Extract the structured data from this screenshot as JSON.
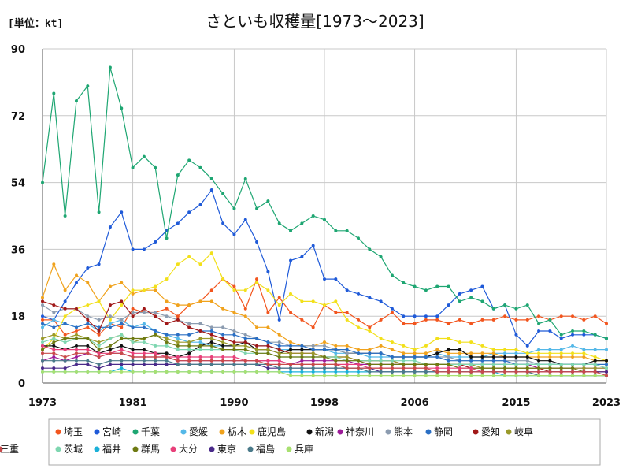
{
  "unit_label": "[単位：kt]",
  "chart_data": {
    "type": "line",
    "title": "さといも収穫量[1973～2023]",
    "xlabel": "",
    "ylabel": "",
    "xlim": [
      1973,
      2023
    ],
    "ylim": [
      0,
      90
    ],
    "x_ticks": [
      1973,
      1981,
      1990,
      1998,
      2006,
      2015,
      2023
    ],
    "y_ticks": [
      0,
      18,
      36,
      54,
      72,
      90
    ],
    "grid": "horizontal",
    "legend_position": "bottom",
    "x": [
      1973,
      1974,
      1975,
      1976,
      1977,
      1978,
      1979,
      1980,
      1981,
      1982,
      1983,
      1984,
      1985,
      1986,
      1987,
      1988,
      1989,
      1990,
      1991,
      1992,
      1993,
      1994,
      1995,
      1996,
      1997,
      1998,
      1999,
      2000,
      2001,
      2002,
      2003,
      2004,
      2005,
      2006,
      2007,
      2008,
      2009,
      2010,
      2011,
      2012,
      2013,
      2014,
      2015,
      2016,
      2017,
      2018,
      2019,
      2020,
      2021,
      2022,
      2023
    ],
    "series": [
      {
        "name": "埼玉",
        "color": "#f2551e",
        "values": [
          17,
          17,
          13,
          14,
          15,
          13,
          16,
          15,
          20,
          19,
          19,
          20,
          18,
          21,
          22,
          25,
          28,
          26,
          20,
          28,
          19,
          23,
          19,
          17,
          15,
          21,
          19,
          19,
          17,
          15,
          17,
          19,
          16,
          16,
          17,
          17,
          16,
          17,
          16,
          17,
          17,
          18,
          17,
          17,
          18,
          17,
          18,
          18,
          17,
          18,
          16
        ]
      },
      {
        "name": "宮崎",
        "color": "#1f5ad8",
        "values": [
          18,
          17,
          22,
          27,
          31,
          32,
          42,
          46,
          36,
          36,
          38,
          41,
          43,
          46,
          48,
          52,
          43,
          40,
          44,
          38,
          30,
          17,
          33,
          34,
          37,
          28,
          28,
          25,
          24,
          23,
          22,
          20,
          18,
          18,
          18,
          18,
          21,
          24,
          25,
          26,
          20,
          21,
          13,
          10,
          14,
          14,
          12,
          13,
          13,
          13,
          12
        ]
      },
      {
        "name": "千葉",
        "color": "#1ea672",
        "values": [
          54,
          78,
          45,
          76,
          80,
          46,
          85,
          74,
          58,
          61,
          58,
          39,
          56,
          60,
          58,
          55,
          51,
          47,
          55,
          47,
          49,
          43,
          41,
          43,
          45,
          44,
          41,
          41,
          39,
          36,
          34,
          29,
          27,
          26,
          25,
          26,
          26,
          22,
          23,
          22,
          20,
          21,
          20,
          21,
          16,
          17,
          13,
          14,
          14,
          13,
          12
        ]
      },
      {
        "name": "愛媛",
        "color": "#54b8e8",
        "values": [
          15,
          17,
          16,
          15,
          16,
          14,
          16,
          17,
          15,
          16,
          14,
          13,
          12,
          11,
          11,
          10,
          10,
          10,
          11,
          10,
          10,
          9,
          9,
          9,
          9,
          9,
          8,
          8,
          8,
          7,
          7,
          7,
          7,
          7,
          7,
          8,
          7,
          7,
          7,
          7,
          8,
          8,
          8,
          8,
          9,
          9,
          9,
          10,
          9,
          9,
          9
        ]
      },
      {
        "name": "栃木",
        "color": "#f0a21c",
        "values": [
          23,
          32,
          25,
          29,
          27,
          22,
          26,
          27,
          24,
          25,
          25,
          22,
          21,
          21,
          22,
          22,
          20,
          19,
          18,
          15,
          15,
          13,
          11,
          10,
          10,
          11,
          10,
          10,
          9,
          9,
          10,
          9,
          8,
          8,
          8,
          9,
          8,
          8,
          8,
          8,
          8,
          7,
          7,
          7,
          7,
          7,
          7,
          7,
          7,
          6,
          6
        ]
      },
      {
        "name": "鹿児島",
        "color": "#f2e01a",
        "values": [
          9,
          12,
          18,
          20,
          21,
          22,
          17,
          21,
          25,
          25,
          26,
          28,
          32,
          34,
          32,
          35,
          28,
          25,
          25,
          27,
          25,
          21,
          24,
          22,
          22,
          21,
          22,
          17,
          15,
          14,
          12,
          11,
          10,
          9,
          10,
          12,
          12,
          11,
          11,
          10,
          9,
          9,
          9,
          8,
          8,
          8,
          8,
          8,
          8,
          7,
          6
        ]
      },
      {
        "name": "新潟",
        "color": "#111111",
        "values": [
          10,
          10,
          9,
          10,
          10,
          8,
          9,
          10,
          9,
          9,
          8,
          8,
          7,
          8,
          10,
          11,
          10,
          10,
          11,
          9,
          9,
          8,
          9,
          9,
          9,
          9,
          9,
          8,
          8,
          8,
          8,
          7,
          7,
          7,
          7,
          8,
          9,
          9,
          7,
          7,
          7,
          7,
          7,
          7,
          6,
          6,
          5,
          5,
          5,
          6,
          6
        ]
      },
      {
        "name": "神奈川",
        "color": "#9c1a98",
        "values": [
          6,
          7,
          6,
          7,
          8,
          7,
          8,
          8,
          7,
          7,
          7,
          7,
          6,
          6,
          6,
          6,
          6,
          6,
          6,
          6,
          6,
          6,
          5,
          6,
          6,
          6,
          6,
          6,
          5,
          5,
          5,
          5,
          5,
          5,
          5,
          5,
          5,
          5,
          5,
          5,
          5,
          5,
          5,
          5,
          4,
          4,
          4,
          4,
          4,
          4,
          4
        ]
      },
      {
        "name": "熊本",
        "color": "#8c9cb0",
        "values": [
          21,
          19,
          20,
          20,
          18,
          17,
          18,
          17,
          19,
          19,
          19,
          18,
          17,
          16,
          16,
          15,
          15,
          14,
          13,
          12,
          11,
          11,
          10,
          10,
          10,
          10,
          9,
          8,
          8,
          8,
          8,
          7,
          7,
          7,
          7,
          7,
          7,
          6,
          6,
          6,
          6,
          6,
          6,
          6,
          5,
          5,
          5,
          5,
          5,
          5,
          4
        ]
      },
      {
        "name": "静岡",
        "color": "#2a6fc4",
        "values": [
          16,
          15,
          16,
          15,
          16,
          15,
          15,
          16,
          15,
          15,
          14,
          13,
          13,
          13,
          14,
          14,
          13,
          13,
          12,
          12,
          11,
          10,
          10,
          10,
          9,
          9,
          9,
          9,
          8,
          8,
          8,
          7,
          7,
          7,
          7,
          7,
          6,
          6,
          6,
          6,
          6,
          6,
          5,
          5,
          5,
          5,
          5,
          5,
          5,
          5,
          5
        ]
      },
      {
        "name": "愛知",
        "color": "#a01818",
        "values": [
          22,
          21,
          20,
          20,
          17,
          14,
          21,
          22,
          18,
          20,
          18,
          16,
          17,
          15,
          14,
          13,
          12,
          11,
          11,
          10,
          10,
          9,
          8,
          8,
          8,
          7,
          7,
          7,
          6,
          6,
          6,
          6,
          5,
          5,
          5,
          5,
          5,
          5,
          4,
          4,
          4,
          4,
          4,
          4,
          4,
          3,
          3,
          3,
          3,
          3,
          3
        ]
      },
      {
        "name": "岐阜",
        "color": "#9a9a2a",
        "values": [
          12,
          13,
          12,
          13,
          12,
          11,
          12,
          13,
          11,
          12,
          13,
          12,
          11,
          11,
          12,
          12,
          11,
          10,
          10,
          9,
          9,
          8,
          8,
          8,
          8,
          7,
          7,
          7,
          6,
          6,
          6,
          6,
          5,
          5,
          5,
          5,
          5,
          5,
          5,
          4,
          4,
          4,
          4,
          4,
          4,
          4,
          4,
          4,
          4,
          4,
          4
        ]
      },
      {
        "name": "茨城",
        "color": "#7ed6b0",
        "values": [
          11,
          12,
          11,
          12,
          12,
          10,
          12,
          13,
          11,
          11,
          10,
          10,
          9,
          9,
          9,
          9,
          9,
          9,
          8,
          8,
          8,
          7,
          7,
          7,
          7,
          7,
          7,
          6,
          6,
          6,
          6,
          6,
          6,
          6,
          5,
          5,
          5,
          5,
          5,
          5,
          5,
          5,
          5,
          5,
          5,
          5,
          5,
          5,
          5,
          5,
          4
        ]
      },
      {
        "name": "福井",
        "color": "#1ab0d8",
        "values": [
          3,
          3,
          3,
          3,
          3,
          3,
          3,
          4,
          3,
          3,
          3,
          3,
          3,
          3,
          3,
          3,
          3,
          3,
          3,
          3,
          3,
          3,
          3,
          3,
          3,
          3,
          3,
          3,
          3,
          3,
          3,
          3,
          3,
          3,
          3,
          3,
          3,
          3,
          3,
          3,
          3,
          2,
          2,
          2,
          2,
          2,
          2,
          2,
          2,
          2,
          2
        ]
      },
      {
        "name": "群馬",
        "color": "#6e7a12",
        "values": [
          9,
          11,
          12,
          12,
          12,
          9,
          10,
          12,
          12,
          12,
          13,
          11,
          10,
          10,
          10,
          10,
          9,
          9,
          9,
          8,
          8,
          7,
          7,
          7,
          7,
          7,
          6,
          6,
          6,
          5,
          5,
          5,
          5,
          5,
          5,
          5,
          5,
          4,
          4,
          4,
          4,
          4,
          4,
          4,
          4,
          4,
          4,
          4,
          3,
          3,
          3
        ]
      },
      {
        "name": "大分",
        "color": "#e8407a",
        "values": [
          10,
          9,
          9,
          9,
          9,
          8,
          8,
          9,
          8,
          8,
          8,
          7,
          7,
          7,
          7,
          7,
          7,
          7,
          6,
          6,
          6,
          6,
          5,
          5,
          5,
          5,
          5,
          5,
          5,
          4,
          4,
          4,
          4,
          4,
          4,
          4,
          4,
          4,
          4,
          3,
          3,
          3,
          3,
          3,
          3,
          3,
          3,
          3,
          3,
          3,
          3
        ]
      },
      {
        "name": "東京",
        "color": "#4a2a8a",
        "values": [
          4,
          4,
          4,
          5,
          5,
          4,
          5,
          5,
          5,
          5,
          5,
          5,
          5,
          5,
          5,
          5,
          5,
          5,
          5,
          5,
          4,
          4,
          4,
          4,
          4,
          4,
          4,
          4,
          4,
          4,
          3,
          3,
          3,
          3,
          3,
          3,
          3,
          3,
          3,
          3,
          3,
          3,
          3,
          3,
          3,
          3,
          3,
          3,
          3,
          3,
          3
        ]
      },
      {
        "name": "福島",
        "color": "#4a7a8a",
        "values": [
          6,
          6,
          6,
          6,
          6,
          5,
          6,
          6,
          6,
          6,
          6,
          6,
          5,
          5,
          5,
          5,
          5,
          5,
          5,
          5,
          5,
          4,
          4,
          4,
          4,
          4,
          4,
          4,
          4,
          3,
          3,
          3,
          3,
          3,
          3,
          3,
          3,
          3,
          3,
          3,
          3,
          3,
          3,
          3,
          2,
          2,
          2,
          2,
          2,
          2,
          2
        ]
      },
      {
        "name": "兵庫",
        "color": "#a8e070",
        "values": [
          3,
          3,
          3,
          3,
          3,
          3,
          3,
          3,
          3,
          3,
          3,
          3,
          3,
          3,
          3,
          3,
          3,
          3,
          3,
          3,
          3,
          3,
          2,
          2,
          2,
          2,
          2,
          2,
          2,
          2,
          2,
          2,
          2,
          2,
          2,
          2,
          2,
          2,
          2,
          2,
          2,
          2,
          2,
          2,
          2,
          2,
          2,
          2,
          2,
          2,
          2
        ]
      },
      {
        "name": "三重",
        "color": "#c84a4a",
        "values": [
          8,
          8,
          7,
          8,
          8,
          7,
          8,
          8,
          7,
          7,
          7,
          7,
          6,
          6,
          6,
          6,
          6,
          6,
          6,
          6,
          5,
          5,
          5,
          5,
          5,
          5,
          5,
          4,
          4,
          4,
          4,
          4,
          4,
          4,
          4,
          3,
          3,
          3,
          3,
          3,
          3,
          3,
          3,
          3,
          3,
          3,
          3,
          3,
          3,
          3,
          2
        ]
      }
    ]
  }
}
